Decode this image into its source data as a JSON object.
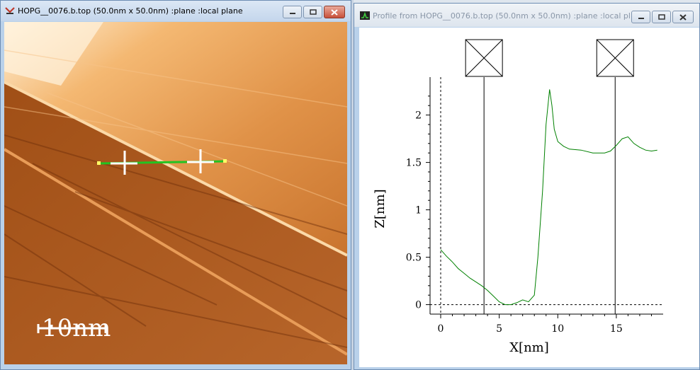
{
  "image_window": {
    "title": "HOPG__0076.b.top (50.0nm x 50.0nm) :plane :local plane",
    "scalebar_label": "10nm"
  },
  "profile_window": {
    "title": "Profile from HOPG__0076.b.top (50.0nm x 50.0nm) :plane :local pl..."
  },
  "chart_data": {
    "type": "line",
    "xlabel": "X[nm]",
    "ylabel": "Z[nm]",
    "xlim": [
      0,
      19
    ],
    "ylim": [
      -0.1,
      2.4
    ],
    "x_ticks": [
      "0",
      "5",
      "10",
      "15"
    ],
    "x_tick_values": [
      0,
      5,
      10,
      15
    ],
    "y_ticks": [
      "0",
      "0.5",
      "1",
      "1.5",
      "2"
    ],
    "y_tick_values": [
      0,
      0.5,
      1,
      1.5,
      2
    ],
    "cursors_x": [
      3.7,
      14.9
    ],
    "series": [
      {
        "color": "#008000",
        "x": [
          0,
          0.5,
          1,
          1.5,
          2,
          2.5,
          3,
          3.5,
          4,
          4.5,
          5,
          5.5,
          6,
          6.5,
          7,
          7.5,
          8,
          8.3,
          8.7,
          9,
          9.3,
          9.5,
          9.7,
          10,
          10.5,
          11,
          12,
          13,
          14,
          14.5,
          15,
          15.5,
          16,
          16.5,
          17,
          17.5,
          18,
          18.5
        ],
        "y": [
          0.58,
          0.51,
          0.45,
          0.38,
          0.33,
          0.28,
          0.24,
          0.2,
          0.15,
          0.09,
          0.03,
          0.0,
          0.0,
          0.02,
          0.05,
          0.03,
          0.1,
          0.5,
          1.2,
          1.9,
          2.27,
          2.1,
          1.85,
          1.72,
          1.67,
          1.64,
          1.63,
          1.6,
          1.6,
          1.62,
          1.68,
          1.75,
          1.77,
          1.7,
          1.66,
          1.63,
          1.62,
          1.63
        ]
      }
    ]
  }
}
